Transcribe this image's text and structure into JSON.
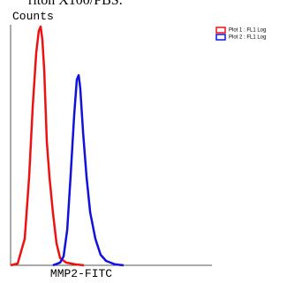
{
  "chart_data": {
    "type": "line",
    "caption": "riton X100/PBS.",
    "ylabel": "Counts",
    "xlabel": "MMP2-FITC",
    "xlim": [
      0,
      100
    ],
    "ylim": [
      0,
      100
    ],
    "legend": "top-right",
    "series": [
      {
        "name": "Plot 1 : FL1 Log",
        "color": "#ee1111",
        "x": [
          0,
          3.5,
          7,
          9.2,
          11,
          12.7,
          14,
          14.9,
          15.8,
          16.7,
          18,
          19.3,
          21,
          22.8,
          24.6,
          27.6,
          32,
          36.4
        ],
        "values": [
          0,
          0.7,
          10.7,
          35.7,
          64.3,
          85.7,
          94.6,
          96.4,
          91.1,
          78.6,
          50,
          35.7,
          21.4,
          8.9,
          2.9,
          1.1,
          0.4,
          0
        ]
      },
      {
        "name": "Plot 2 : FL1 Log",
        "color": "#1111dd",
        "x": [
          21,
          24.6,
          26.3,
          28.1,
          29.8,
          31.6,
          32.9,
          33.8,
          34.6,
          36,
          37.7,
          39.5,
          42.1,
          44.7,
          47.4,
          51.8,
          56.1
        ],
        "values": [
          0,
          1.1,
          3.6,
          14.3,
          35.7,
          60.7,
          75,
          76.8,
          71.4,
          53.6,
          35.7,
          21.4,
          10.7,
          4.3,
          1.8,
          0.4,
          0
        ]
      }
    ]
  }
}
